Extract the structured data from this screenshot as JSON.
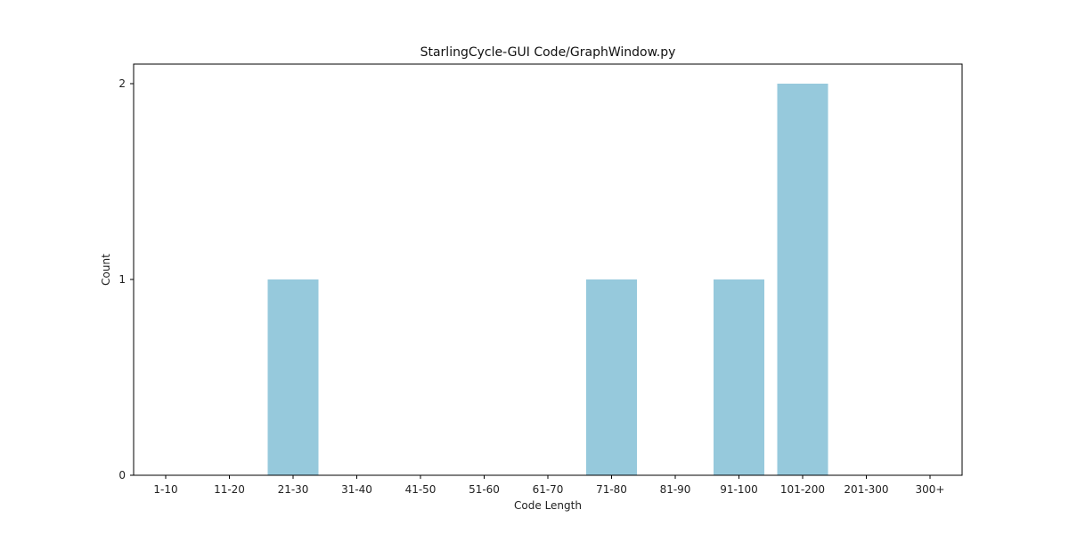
{
  "chart_data": {
    "type": "bar",
    "title": "StarlingCycle-GUI Code/GraphWindow.py",
    "xlabel": "Code Length",
    "ylabel": "Count",
    "categories": [
      "1-10",
      "11-20",
      "21-30",
      "31-40",
      "41-50",
      "51-60",
      "61-70",
      "71-80",
      "81-90",
      "91-100",
      "101-200",
      "201-300",
      "300+"
    ],
    "values": [
      0,
      0,
      1,
      0,
      0,
      0,
      0,
      1,
      0,
      1,
      2,
      0,
      0
    ],
    "yticks": [
      0,
      1,
      2
    ],
    "ylim": [
      0,
      2.1
    ],
    "bar_color": "#96c9dc",
    "grid": false,
    "legend": "none"
  }
}
